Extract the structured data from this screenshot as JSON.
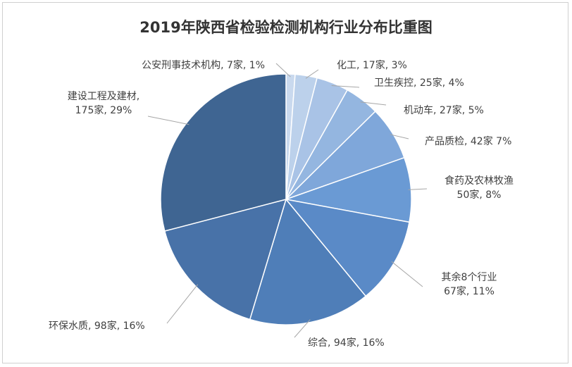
{
  "chart_data": {
    "type": "pie",
    "title": "2019年陕西省检验检测机构行业分布比重图",
    "start": "top, clockwise",
    "slices": [
      {
        "name": "公安刑事技术机构",
        "count": 7,
        "percent": 1,
        "color": "#c9d9ee",
        "label": [
          "公安刑事技术机构, 7家, 1%"
        ]
      },
      {
        "name": "化工",
        "count": 17,
        "percent": 3,
        "color": "#bcd1eb",
        "label": [
          "化工, 17家, 3%"
        ]
      },
      {
        "name": "卫生疾控",
        "count": 25,
        "percent": 4,
        "color": "#a9c3e6",
        "label": [
          "卫生疾控, 25家, 4%"
        ]
      },
      {
        "name": "机动车",
        "count": 27,
        "percent": 5,
        "color": "#94b6e0",
        "label": [
          "机动车, 27家, 5%"
        ]
      },
      {
        "name": "产品质检",
        "count": 42,
        "percent": 7,
        "color": "#7fa7da",
        "label": [
          "产品质检, 42家 7%"
        ]
      },
      {
        "name": "食药及农林牧渔",
        "count": 50,
        "percent": 8,
        "color": "#6a9ad4",
        "label": [
          "食药及农林牧渔",
          "50家, 8%"
        ]
      },
      {
        "name": "其余8个行业",
        "count": 67,
        "percent": 11,
        "color": "#5a8ac7",
        "label": [
          "其余8个行业",
          "67家, 11%"
        ]
      },
      {
        "name": "综合",
        "count": 94,
        "percent": 16,
        "color": "#4f7eb8",
        "label": [
          "综合, 94家, 16%"
        ]
      },
      {
        "name": "环保水质",
        "count": 98,
        "percent": 16,
        "color": "#4872a8",
        "label": [
          "环保水质, 98家, 16%"
        ]
      },
      {
        "name": "建设工程及建材",
        "count": 175,
        "percent": 29,
        "color": "#3f6592",
        "label": [
          "建设工程及建材,",
          "175家, 29%"
        ]
      }
    ]
  }
}
